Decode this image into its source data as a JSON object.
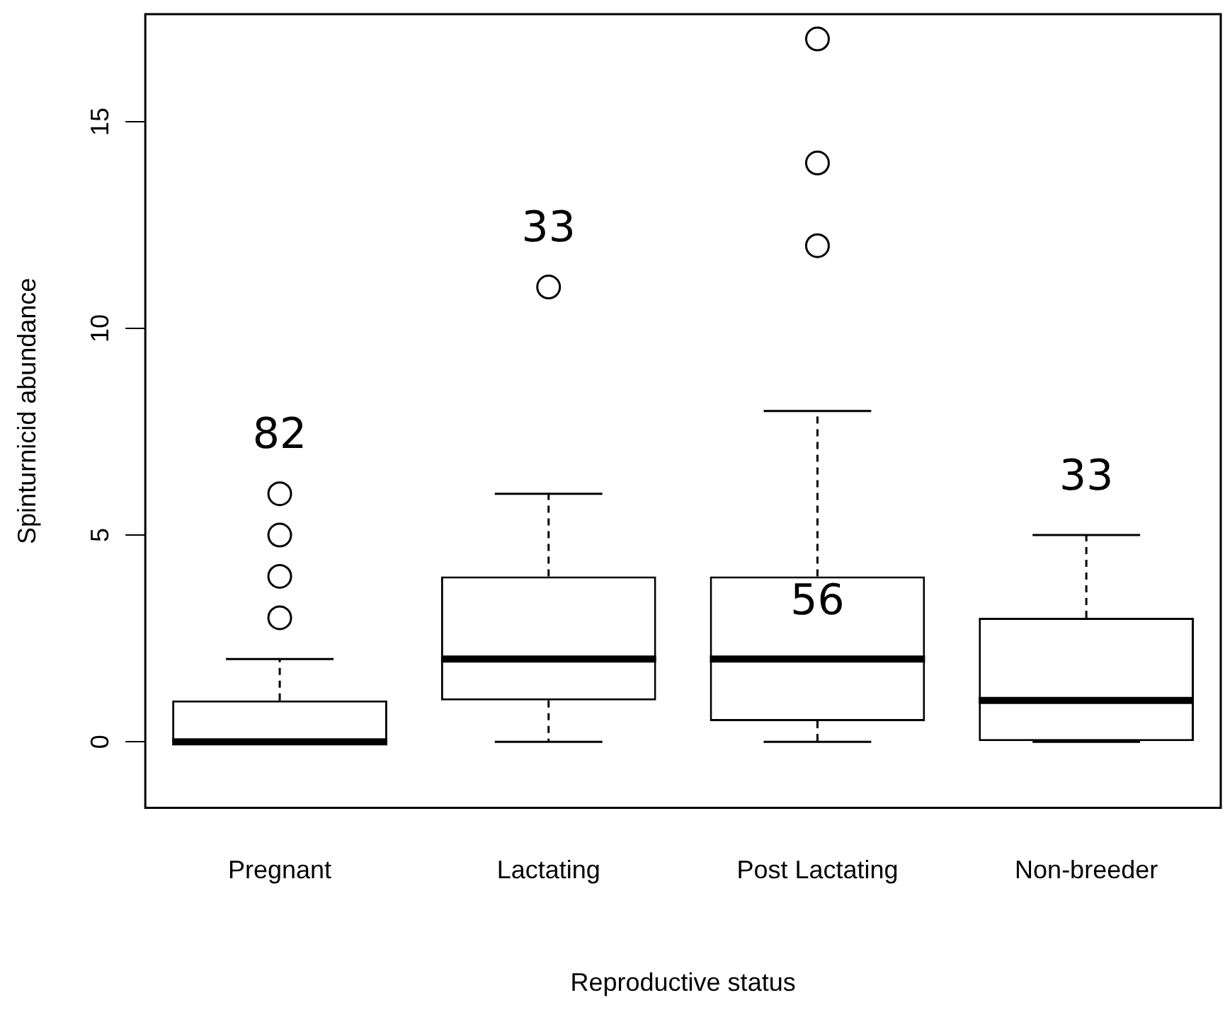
{
  "chart_data": {
    "type": "box",
    "xlabel": "Reproductive status",
    "ylabel": "Spinturnicid abundance",
    "categories": [
      "Pregnant",
      "Lactating",
      "Post Lactating",
      "Non-breeder"
    ],
    "boxes": [
      {
        "low": 0,
        "q1": 0,
        "median": 0,
        "q3": 1,
        "high": 2,
        "outliers": [
          3,
          4,
          5,
          6
        ]
      },
      {
        "low": 0,
        "q1": 1,
        "median": 2,
        "q3": 4,
        "high": 6,
        "outliers": [
          11
        ]
      },
      {
        "low": 0,
        "q1": 0.5,
        "median": 2,
        "q3": 4,
        "high": 8,
        "outliers": [
          12,
          14,
          17
        ]
      },
      {
        "low": 0,
        "q1": 0,
        "median": 1,
        "q3": 3,
        "high": 5
      }
    ],
    "ylim": [
      -1.6,
      17.6
    ],
    "yticks": [
      0,
      5,
      10,
      15
    ],
    "grid": false,
    "legend": false,
    "annotations": [
      "82",
      "33",
      "56",
      "33"
    ]
  }
}
